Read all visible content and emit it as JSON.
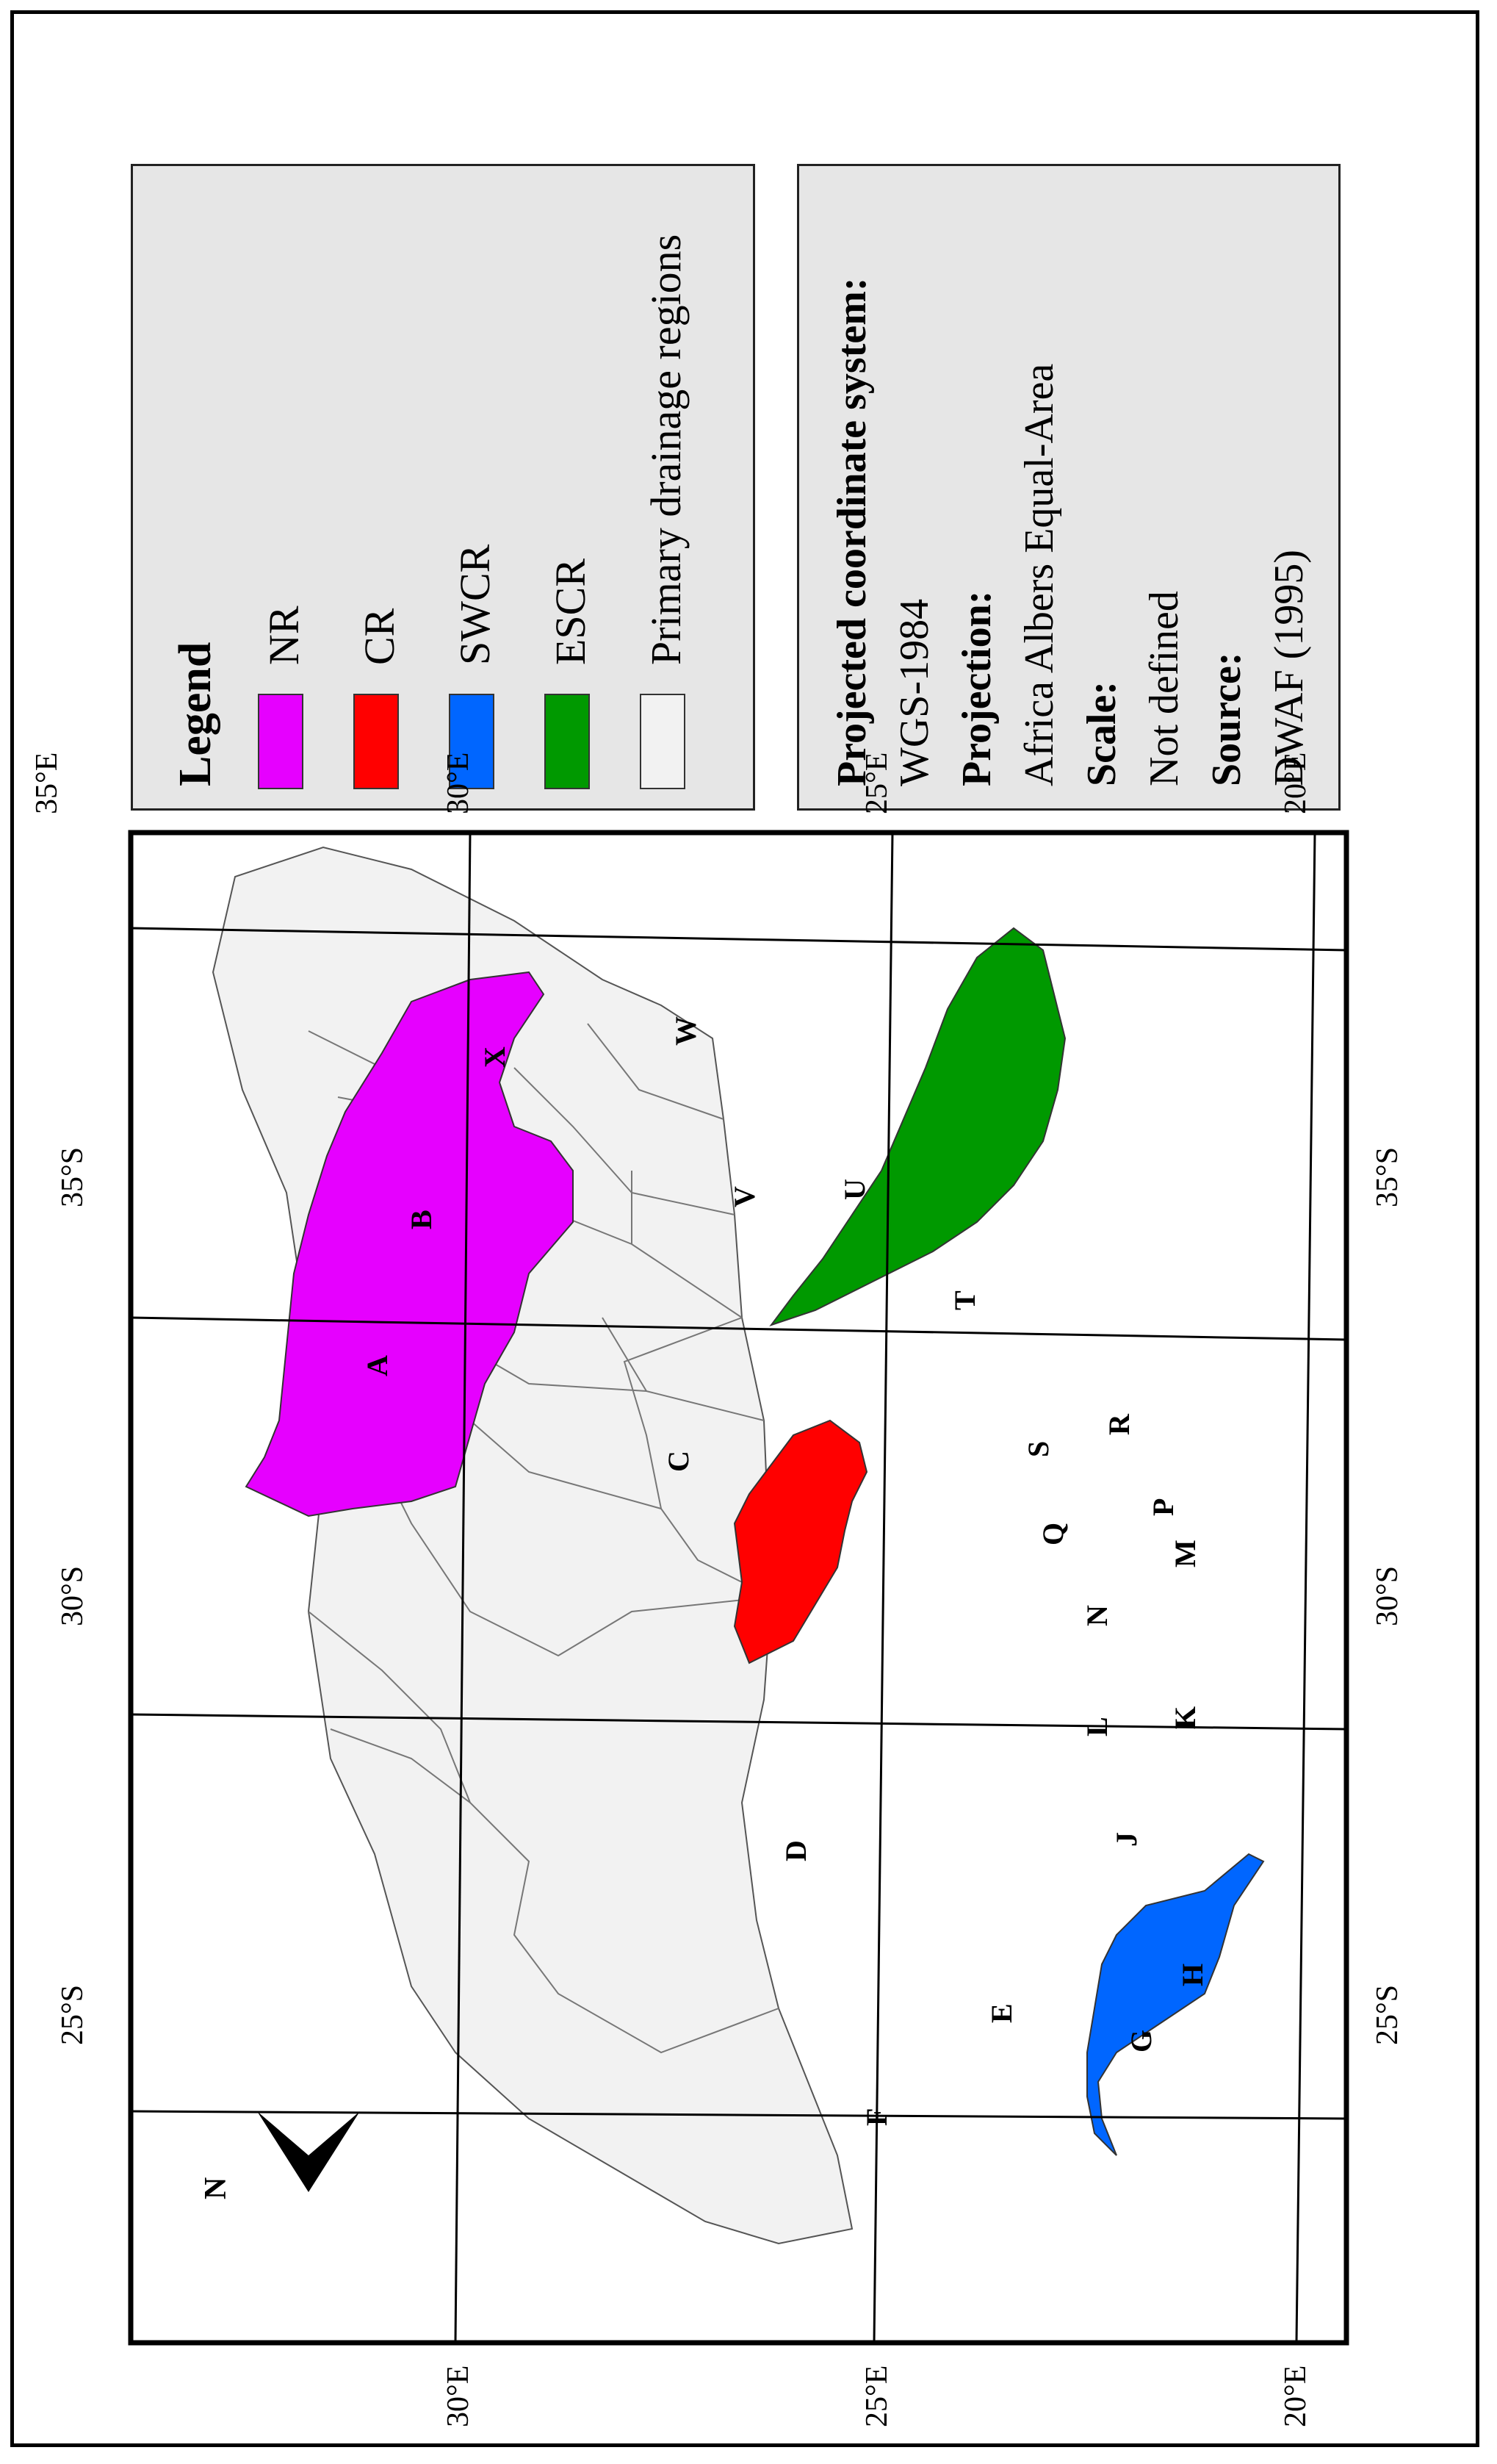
{
  "map": {
    "grid_labels": {
      "lat_left": [
        "25°S",
        "30°S",
        "35°S"
      ],
      "lat_right": [
        "25°S",
        "30°S",
        "35°S"
      ],
      "lon_top": [
        "20°E",
        "25°E",
        "30°E"
      ],
      "lon_bottom": [
        "20°E",
        "25°E",
        "30°E",
        "35°E"
      ]
    },
    "north_arrow_label": "N",
    "region_letters": [
      "A",
      "B",
      "C",
      "D",
      "E",
      "F",
      "G",
      "H",
      "J",
      "K",
      "L",
      "M",
      "N",
      "P",
      "Q",
      "R",
      "S",
      "T",
      "U",
      "V",
      "W",
      "X"
    ],
    "colors": {
      "NR": "#e600ff",
      "CR": "#ff0000",
      "SWCR": "#0066ff",
      "ESCR": "#009900",
      "primary": "#f2f2f2",
      "legend_bg": "#e6e6e6"
    }
  },
  "legend": {
    "title": "Legend",
    "items": [
      {
        "label": "NR",
        "color": "#e600ff"
      },
      {
        "label": "CR",
        "color": "#ff0000"
      },
      {
        "label": "SWCR",
        "color": "#0066ff"
      },
      {
        "label": "ESCR",
        "color": "#009900"
      },
      {
        "label": "Primary drainage regions",
        "color": "#f2f2f2"
      }
    ]
  },
  "info": {
    "pcs_heading": "Projected coordinate system:",
    "pcs_value": "WGS-1984",
    "projection_heading": "Projection:",
    "projection_value": "Africa Albers Equal-Area",
    "scale_heading": "Scale:",
    "scale_value": "Not defined",
    "source_heading": "Source:",
    "source_value": "DWAF (1995)"
  }
}
